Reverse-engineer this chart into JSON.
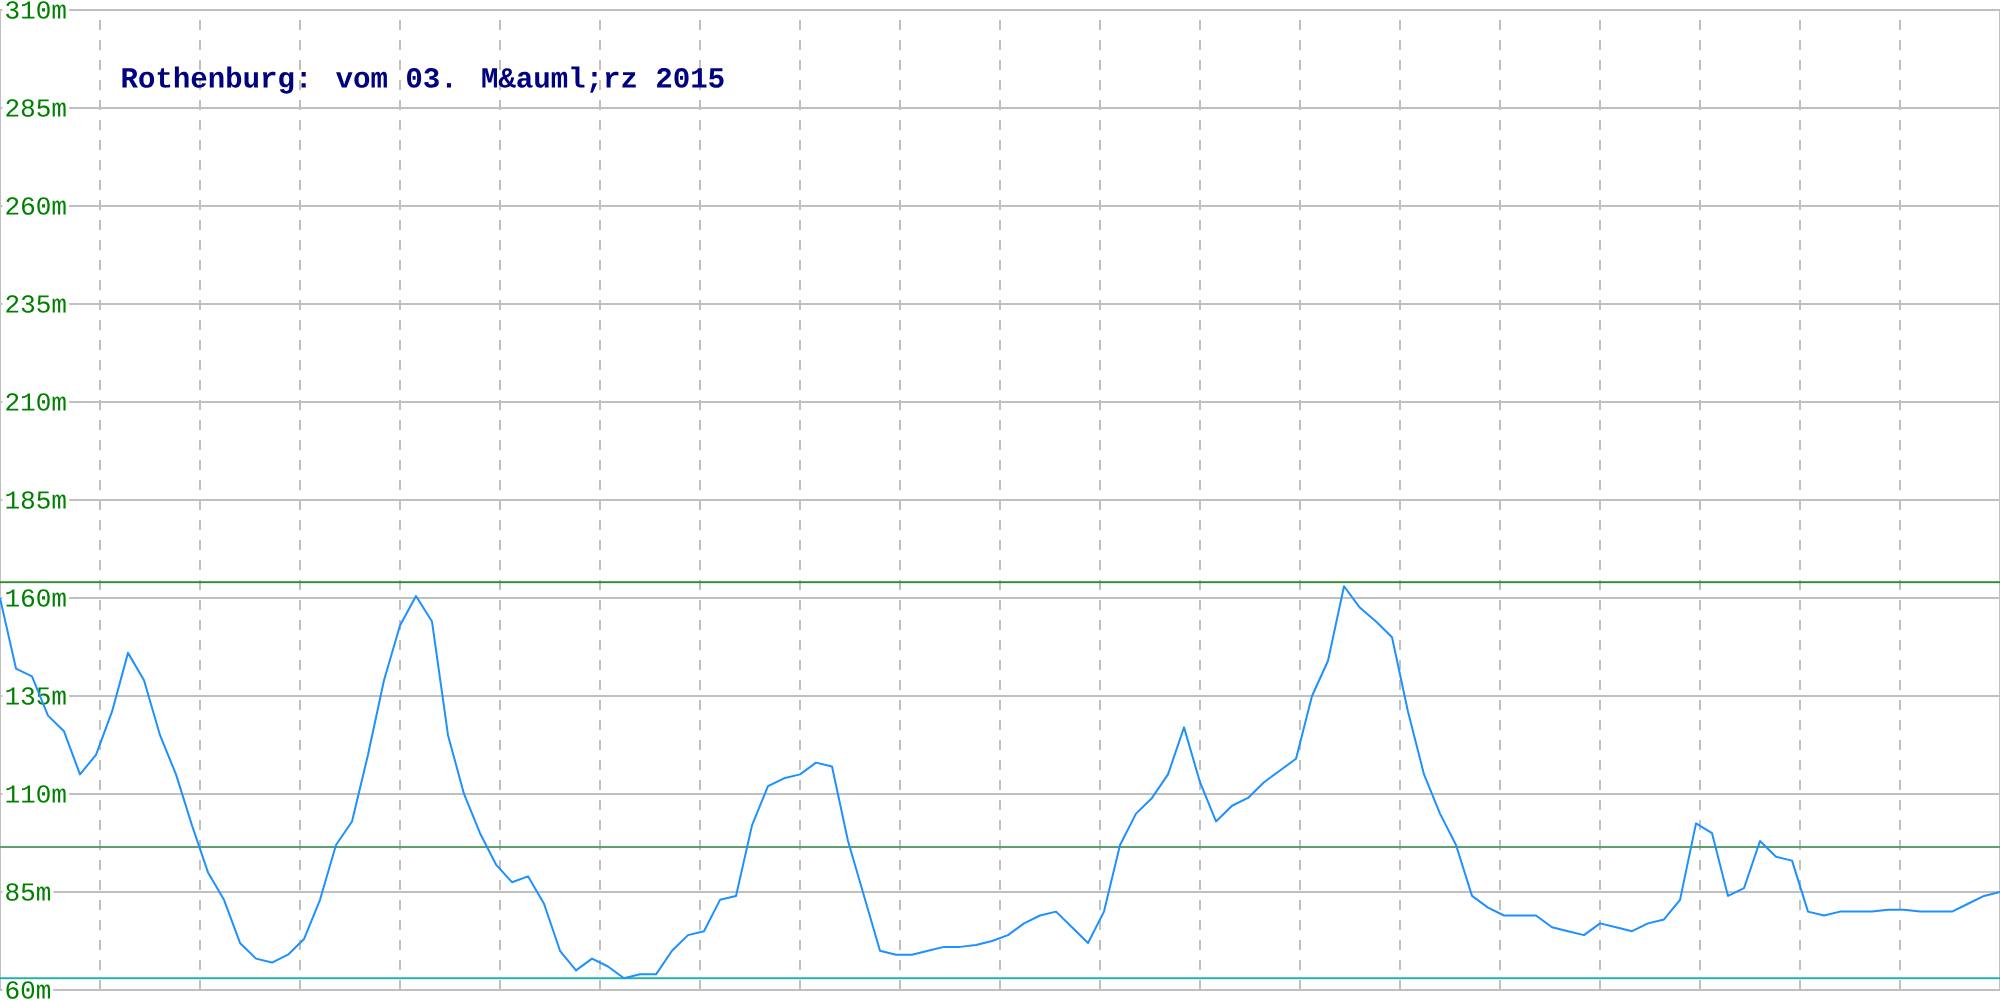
{
  "chart_data": {
    "type": "line",
    "title": "Rothenburg: vom 03. M&auml;rz 2015",
    "categories": [
      null,
      null,
      null,
      null,
      null,
      null,
      null,
      null,
      null,
      null,
      null,
      null,
      null,
      null,
      null,
      null,
      null,
      null,
      null,
      null,
      null,
      null,
      null,
      null,
      null,
      null,
      null,
      null,
      null,
      null,
      null,
      null,
      null,
      null,
      null,
      null,
      null,
      null,
      null,
      null,
      null,
      null,
      null,
      null,
      null,
      null,
      null,
      null,
      null,
      null,
      null,
      null,
      null,
      null,
      null,
      null,
      null,
      null,
      null,
      null,
      null,
      null,
      null,
      null,
      null,
      null,
      null,
      null,
      null,
      null,
      null,
      null,
      null,
      null,
      null,
      null,
      null,
      null,
      null,
      null,
      null,
      null,
      null,
      null,
      null,
      null,
      null,
      null,
      null,
      null,
      null,
      null,
      null,
      null,
      null,
      null,
      null,
      null,
      null,
      null,
      null,
      null,
      null,
      null,
      null,
      null,
      null,
      null,
      null,
      null,
      null,
      null,
      null,
      null,
      null,
      null,
      null,
      null,
      null,
      null,
      null,
      null,
      null,
      null,
      null,
      null
    ],
    "series": [
      {
        "color": "#1e90ff",
        "values": [
          160,
          142,
          140,
          130,
          126,
          115,
          120,
          131,
          146,
          139,
          125,
          115,
          102,
          90,
          83,
          72,
          68,
          67,
          69,
          73,
          83,
          97,
          103,
          120,
          139,
          153,
          160.5,
          154,
          125,
          110,
          100,
          92,
          87.5,
          89,
          82,
          70,
          65,
          68,
          66,
          63,
          64,
          64,
          70,
          74,
          75,
          83,
          84,
          102,
          112,
          114,
          115,
          118,
          117,
          98,
          84,
          70,
          69,
          69,
          70,
          71,
          71,
          71.5,
          72.5,
          74,
          77,
          79,
          80,
          76,
          72,
          80,
          97,
          105,
          109,
          115,
          127,
          113,
          103,
          107,
          109,
          113,
          116,
          119,
          135,
          144,
          163,
          157.5,
          154,
          150,
          131,
          115,
          105,
          97,
          84,
          81,
          79,
          79,
          79,
          76,
          75,
          74,
          77,
          76,
          75,
          77,
          78,
          83,
          102.5,
          100,
          84,
          86,
          98,
          94,
          93,
          80,
          79,
          80,
          80,
          80,
          80.5,
          80.5,
          80,
          80,
          80,
          82,
          84,
          85
        ]
      }
    ],
    "ylim": [
      60,
      310
    ],
    "yticks": [
      {
        "value": 60,
        "label": "60m"
      },
      {
        "value": 85,
        "label": "85m"
      },
      {
        "value": 110,
        "label": "110m"
      },
      {
        "value": 135,
        "label": "135m"
      },
      {
        "value": 160,
        "label": "160m"
      },
      {
        "value": 185,
        "label": "185m"
      },
      {
        "value": 210,
        "label": "210m"
      },
      {
        "value": 235,
        "label": "235m"
      },
      {
        "value": 260,
        "label": "260m"
      },
      {
        "value": 285,
        "label": "285m"
      },
      {
        "value": 310,
        "label": "310m"
      }
    ],
    "tick_labels": "y",
    "grid": true,
    "marker": "none",
    "ref_lines": [
      {
        "axis": "y",
        "value": 164,
        "color": "#2e8b2e"
      },
      {
        "axis": "y",
        "value": 96.5,
        "color": "#5f9f6f"
      },
      {
        "axis": "y",
        "value": 63,
        "color": "#20b2aa"
      }
    ]
  }
}
